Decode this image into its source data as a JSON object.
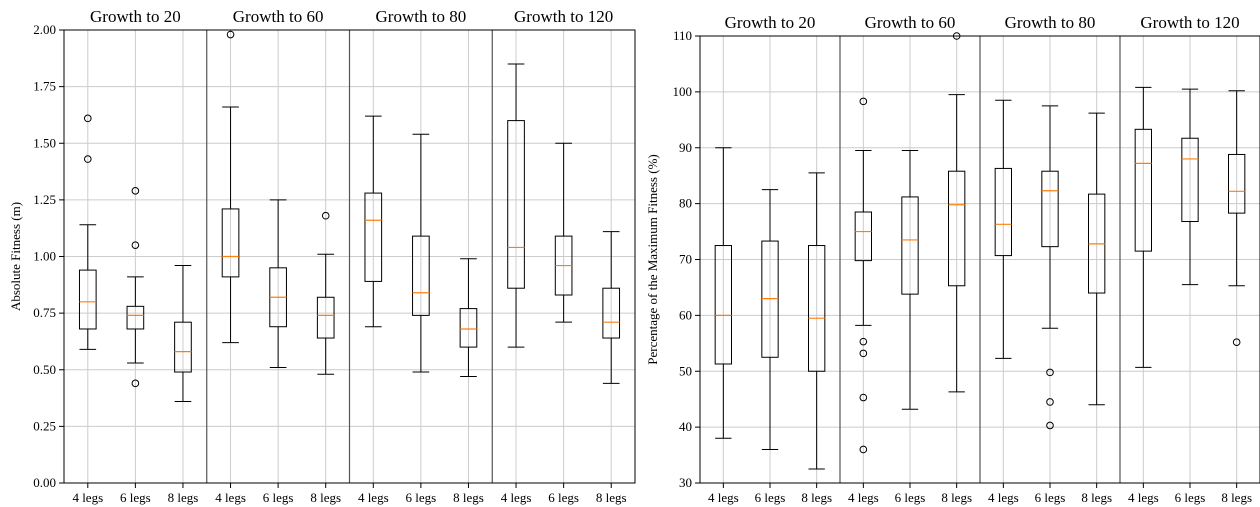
{
  "colors": {
    "box": "#000000",
    "median": "#ff7f0e",
    "grid": "#cccccc",
    "frame": "#000000",
    "background": "#ffffff"
  },
  "chart_data": [
    {
      "type": "box",
      "ylabel": "Absolute Fitness (m)",
      "ylim": [
        0,
        2.0
      ],
      "yticks": [
        "0.00",
        "0.25",
        "0.50",
        "0.75",
        "1.00",
        "1.25",
        "1.50",
        "1.75",
        "2.00"
      ],
      "ytick_values": [
        0,
        0.25,
        0.5,
        0.75,
        1.0,
        1.25,
        1.5,
        1.75,
        2.0
      ],
      "grid": true,
      "groups": [
        {
          "title": "Growth to 20",
          "boxes": [
            {
              "label": "4 legs",
              "whislo": 0.59,
              "q1": 0.68,
              "med": 0.8,
              "q3": 0.94,
              "whishi": 1.14,
              "fliers": [
                1.43,
                1.61
              ]
            },
            {
              "label": "6 legs",
              "whislo": 0.53,
              "q1": 0.68,
              "med": 0.74,
              "q3": 0.78,
              "whishi": 0.91,
              "fliers": [
                0.44,
                1.05,
                1.29
              ]
            },
            {
              "label": "8 legs",
              "whislo": 0.36,
              "q1": 0.49,
              "med": 0.58,
              "q3": 0.71,
              "whishi": 0.96,
              "fliers": []
            }
          ]
        },
        {
          "title": "Growth to  60",
          "boxes": [
            {
              "label": "4 legs",
              "whislo": 0.62,
              "q1": 0.91,
              "med": 1.0,
              "q3": 1.21,
              "whishi": 1.66,
              "fliers": [
                1.98
              ]
            },
            {
              "label": "6 legs",
              "whislo": 0.51,
              "q1": 0.69,
              "med": 0.82,
              "q3": 0.95,
              "whishi": 1.25,
              "fliers": []
            },
            {
              "label": "8 legs",
              "whislo": 0.48,
              "q1": 0.64,
              "med": 0.74,
              "q3": 0.82,
              "whishi": 1.01,
              "fliers": [
                1.18
              ]
            }
          ]
        },
        {
          "title": "Growth to  80",
          "boxes": [
            {
              "label": "4 legs",
              "whislo": 0.69,
              "q1": 0.89,
              "med": 1.16,
              "q3": 1.28,
              "whishi": 1.62,
              "fliers": []
            },
            {
              "label": "6 legs",
              "whislo": 0.49,
              "q1": 0.74,
              "med": 0.84,
              "q3": 1.09,
              "whishi": 1.54,
              "fliers": []
            },
            {
              "label": "8 legs",
              "whislo": 0.47,
              "q1": 0.6,
              "med": 0.68,
              "q3": 0.77,
              "whishi": 0.99,
              "fliers": []
            }
          ]
        },
        {
          "title": "Growth to  120",
          "boxes": [
            {
              "label": "4 legs",
              "whislo": 0.6,
              "q1": 0.86,
              "med": 1.04,
              "q3": 1.6,
              "whishi": 1.85,
              "fliers": []
            },
            {
              "label": "6 legs",
              "whislo": 0.71,
              "q1": 0.83,
              "med": 0.96,
              "q3": 1.09,
              "whishi": 1.5,
              "fliers": []
            },
            {
              "label": "8 legs",
              "whislo": 0.44,
              "q1": 0.64,
              "med": 0.71,
              "q3": 0.86,
              "whishi": 1.11,
              "fliers": []
            }
          ]
        }
      ]
    },
    {
      "type": "box",
      "ylabel": "Percentage of the Maximum Fitness (%)",
      "ylim": [
        30,
        110
      ],
      "yticks": [
        "30",
        "40",
        "50",
        "60",
        "70",
        "80",
        "90",
        "100",
        "110"
      ],
      "ytick_values": [
        30,
        40,
        50,
        60,
        70,
        80,
        90,
        100,
        110
      ],
      "grid": true,
      "groups": [
        {
          "title": "Growth to 20",
          "boxes": [
            {
              "label": "4 legs",
              "whislo": 38,
              "q1": 51.3,
              "med": 60,
              "q3": 72.5,
              "whishi": 90,
              "fliers": []
            },
            {
              "label": "6 legs",
              "whislo": 36,
              "q1": 52.5,
              "med": 63,
              "q3": 73.3,
              "whishi": 82.5,
              "fliers": []
            },
            {
              "label": "8 legs",
              "whislo": 32.5,
              "q1": 50,
              "med": 59.5,
              "q3": 72.5,
              "whishi": 85.5,
              "fliers": []
            }
          ]
        },
        {
          "title": "Growth to  60",
          "boxes": [
            {
              "label": "4 legs",
              "whislo": 58.2,
              "q1": 69.8,
              "med": 75,
              "q3": 78.5,
              "whishi": 89.5,
              "fliers": [
                36,
                45.3,
                53.2,
                55.3,
                98.3
              ]
            },
            {
              "label": "6 legs",
              "whislo": 43.2,
              "q1": 63.8,
              "med": 73.5,
              "q3": 81.2,
              "whishi": 89.5,
              "fliers": []
            },
            {
              "label": "8 legs",
              "whislo": 46.3,
              "q1": 65.3,
              "med": 79.8,
              "q3": 85.8,
              "whishi": 99.5,
              "fliers": [
                110
              ]
            }
          ]
        },
        {
          "title": "Growth to  80",
          "boxes": [
            {
              "label": "4 legs",
              "whislo": 52.3,
              "q1": 70.7,
              "med": 76.3,
              "q3": 86.3,
              "whishi": 98.5,
              "fliers": []
            },
            {
              "label": "6 legs",
              "whislo": 57.7,
              "q1": 72.3,
              "med": 82.3,
              "q3": 85.8,
              "whishi": 97.5,
              "fliers": [
                40.3,
                44.5,
                49.8
              ]
            },
            {
              "label": "8 legs",
              "whislo": 44,
              "q1": 64,
              "med": 72.8,
              "q3": 81.7,
              "whishi": 96.2,
              "fliers": []
            }
          ]
        },
        {
          "title": "Growth to  120",
          "boxes": [
            {
              "label": "4 legs",
              "whislo": 50.7,
              "q1": 71.5,
              "med": 87.2,
              "q3": 93.3,
              "whishi": 100.8,
              "fliers": []
            },
            {
              "label": "6 legs",
              "whislo": 65.5,
              "q1": 76.8,
              "med": 88,
              "q3": 91.7,
              "whishi": 100.5,
              "fliers": []
            },
            {
              "label": "8 legs",
              "whislo": 65.3,
              "q1": 78.3,
              "med": 82.2,
              "q3": 88.8,
              "whishi": 100.2,
              "fliers": [
                55.2
              ]
            }
          ]
        }
      ]
    }
  ]
}
